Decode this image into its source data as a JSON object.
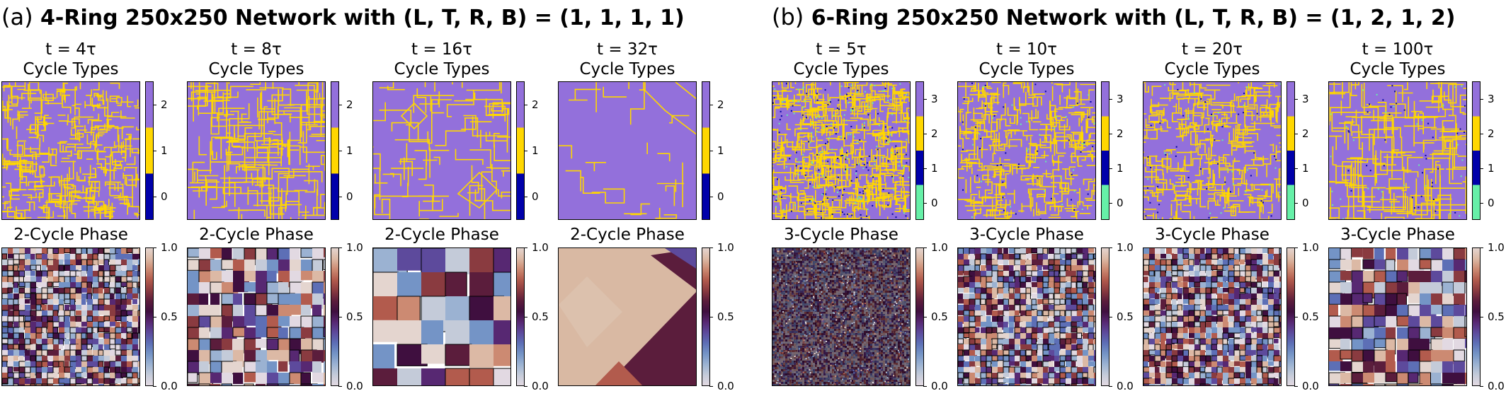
{
  "panels": [
    {
      "id": "a",
      "label": "(a)",
      "title": "4-Ring 250x250 Network with (L, T, R, B) = (1, 1, 1, 1)",
      "phase_title": "2-Cycle Phase",
      "types_colorbar": {
        "ticks": [
          "0",
          "1",
          "2"
        ],
        "colors": [
          "#0000aa",
          "#ffd700",
          "#9370db"
        ]
      },
      "snapshots": [
        {
          "time": "t = 4τ",
          "types_title": "Cycle Types",
          "boundary_density": "high",
          "phase_texture": "fine"
        },
        {
          "time": "t = 8τ",
          "types_title": "Cycle Types",
          "boundary_density": "medium",
          "phase_texture": "medium"
        },
        {
          "time": "t = 16τ",
          "types_title": "Cycle Types",
          "boundary_density": "low",
          "phase_texture": "coarse"
        },
        {
          "time": "t = 32τ",
          "types_title": "Cycle Types",
          "boundary_density": "minimal",
          "phase_texture": "smooth"
        }
      ]
    },
    {
      "id": "b",
      "label": "(b)",
      "title": "6-Ring 250x250 Network with (L, T, R, B) = (1, 2, 1, 2)",
      "phase_title": "3-Cycle Phase",
      "types_colorbar": {
        "ticks": [
          "0",
          "1",
          "2",
          "3"
        ],
        "colors": [
          "#66f0a8",
          "#0000aa",
          "#ffd700",
          "#9370db"
        ]
      },
      "snapshots": [
        {
          "time": "t = 5τ",
          "types_title": "Cycle Types",
          "boundary_density": "very-high",
          "phase_texture": "noise"
        },
        {
          "time": "t = 10τ",
          "types_title": "Cycle Types",
          "boundary_density": "high",
          "phase_texture": "fine"
        },
        {
          "time": "t = 20τ",
          "types_title": "Cycle Types",
          "boundary_density": "high",
          "phase_texture": "fine"
        },
        {
          "time": "t = 100τ",
          "types_title": "Cycle Types",
          "boundary_density": "medium",
          "phase_texture": "medium"
        }
      ]
    }
  ],
  "phase_colorbar": {
    "ticks": [
      "1.0",
      "0.5",
      "0.0"
    ]
  },
  "colors": {
    "purple": "#9370db",
    "gold": "#ffd700",
    "navy": "#0000aa",
    "green": "#66f0a8"
  },
  "chart_data": [
    {
      "type": "heatmap",
      "title": "(a) 4-Ring 250x250 Network with (L, T, R, B) = (1, 1, 1, 1)",
      "rows": [
        "Cycle Types",
        "2-Cycle Phase"
      ],
      "x": [
        "t = 4τ",
        "t = 8τ",
        "t = 16τ",
        "t = 32τ"
      ],
      "cycle_type_range": [
        0,
        2
      ],
      "phase_range": [
        0.0,
        1.0
      ]
    },
    {
      "type": "heatmap",
      "title": "(b) 6-Ring 250x250 Network with (L, T, R, B) = (1, 2, 1, 2)",
      "rows": [
        "Cycle Types",
        "3-Cycle Phase"
      ],
      "x": [
        "t = 5τ",
        "t = 10τ",
        "t = 20τ",
        "t = 100τ"
      ],
      "cycle_type_range": [
        0,
        3
      ],
      "phase_range": [
        0.0,
        1.0
      ]
    }
  ]
}
